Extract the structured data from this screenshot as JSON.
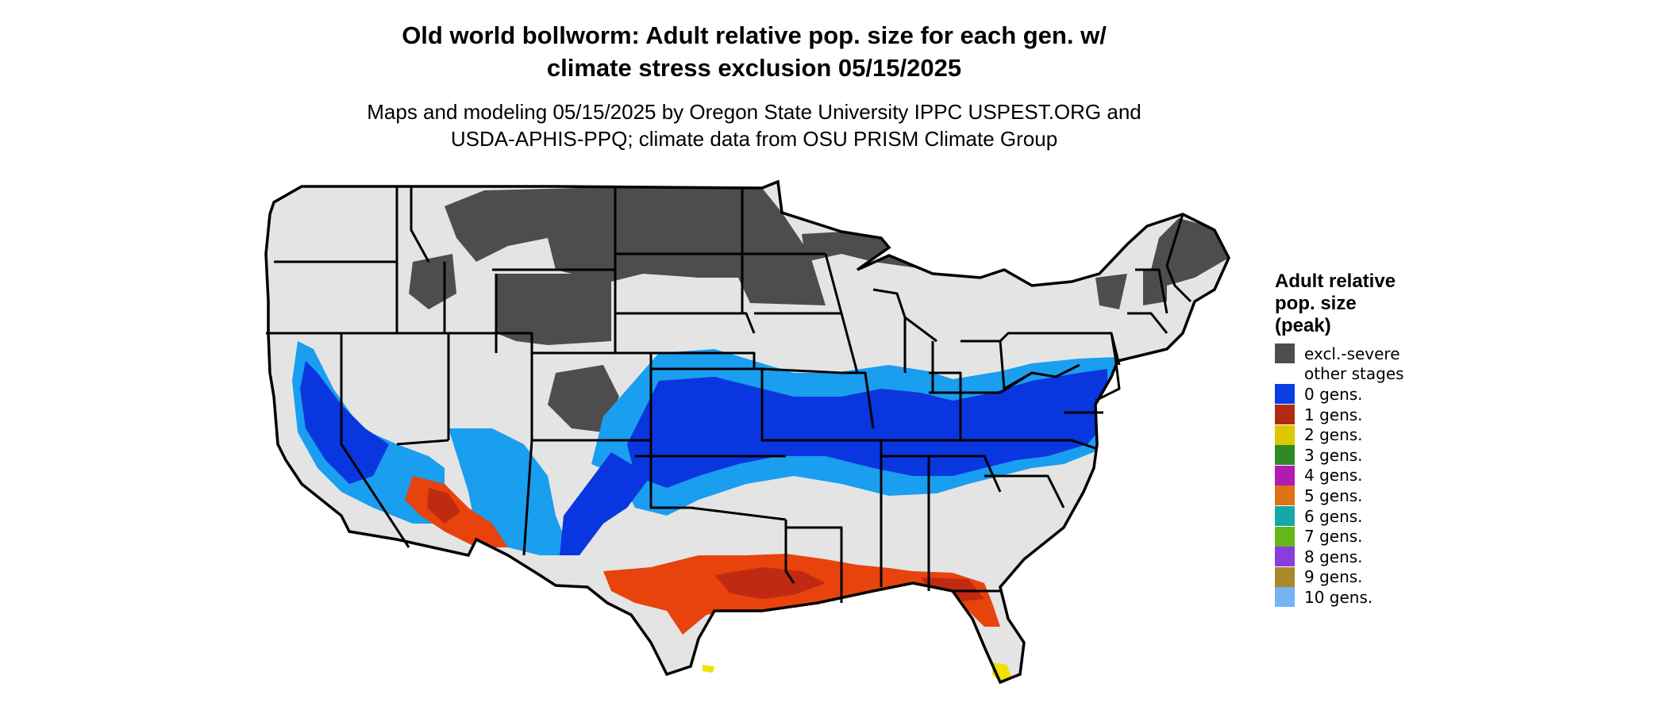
{
  "title": {
    "line1": "Old world bollworm: Adult relative pop. size for each gen. w/",
    "line2": "climate stress exclusion 05/15/2025"
  },
  "subtitle": {
    "line1": "Maps and modeling 05/15/2025 by Oregon State University IPPC USPEST.ORG and",
    "line2": "USDA-APHIS-PPQ; climate data from OSU PRISM Climate Group"
  },
  "map": {
    "colors": {
      "base": "#e4e4e4",
      "excluded": "#4d4d4d",
      "gen0_dark": "#0a36e0",
      "gen0_light": "#1a9eef",
      "gen1": "#c02a12",
      "gen1_orange": "#e8430c",
      "gen2": "#f2e000",
      "border": "#000000"
    }
  },
  "legend": {
    "title_lines": [
      "Adult relative",
      "pop. size",
      "(peak)"
    ],
    "items": [
      {
        "label": "excl.-severe",
        "color": "#4d4d4d"
      },
      {
        "label": "other stages",
        "color": "#ffffff"
      },
      {
        "label": "0 gens.",
        "color": "#0a3ee0"
      },
      {
        "label": "1 gens.",
        "color": "#b22a12"
      },
      {
        "label": "2 gens.",
        "color": "#dcc800"
      },
      {
        "label": "3 gens.",
        "color": "#2e8a24"
      },
      {
        "label": "4 gens.",
        "color": "#b01cb0"
      },
      {
        "label": "5 gens.",
        "color": "#dd7312"
      },
      {
        "label": "6 gens.",
        "color": "#14a8a8"
      },
      {
        "label": "7 gens.",
        "color": "#66b81a"
      },
      {
        "label": "8 gens.",
        "color": "#8a3ddf"
      },
      {
        "label": "9 gens.",
        "color": "#a88a2a"
      },
      {
        "label": "10 gens.",
        "color": "#74b4f4"
      }
    ]
  }
}
